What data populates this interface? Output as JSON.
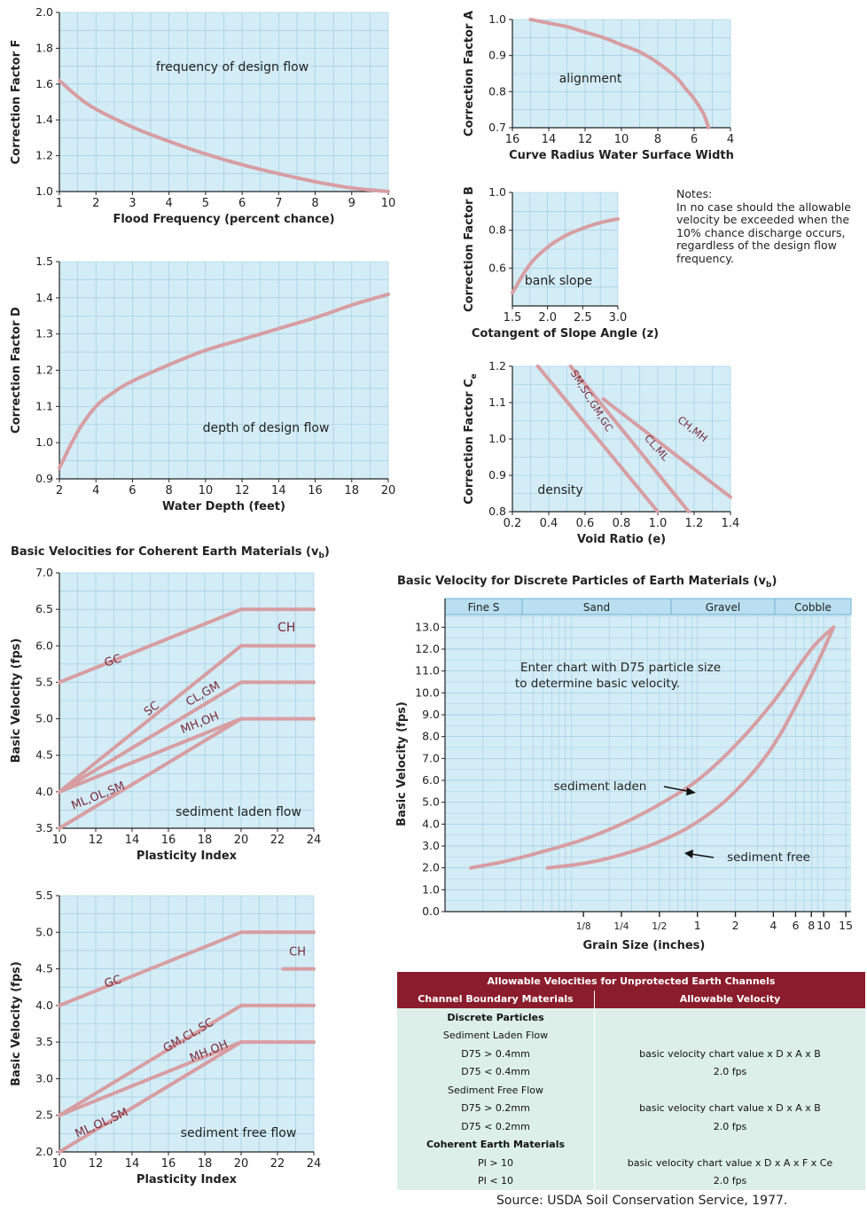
{
  "colors": {
    "plot_bg": "#d3ecf6",
    "grid": "#9ac9e0",
    "curve": "#d79ea2",
    "table_header": "#8b1c2c",
    "table_cell": "#dcefe9"
  },
  "chart_data": [
    {
      "id": "F",
      "type": "line",
      "ylabel": "Correction Factor F",
      "xlabel": "Flood Frequency (percent chance)",
      "annotation": "frequency of design flow",
      "xlim": [
        1,
        10
      ],
      "ylim": [
        1.0,
        2.0
      ],
      "xticks": [
        "1",
        "2",
        "3",
        "4",
        "5",
        "6",
        "7",
        "8",
        "9",
        "10"
      ],
      "yticks": [
        "1.0",
        "1.2",
        "1.4",
        "1.6",
        "1.8",
        "2.0"
      ],
      "series": [
        {
          "x": [
            1,
            1.5,
            2,
            3,
            4,
            5,
            6,
            7,
            8,
            9,
            10
          ],
          "y": [
            1.62,
            1.53,
            1.46,
            1.36,
            1.28,
            1.21,
            1.15,
            1.1,
            1.055,
            1.02,
            1.0
          ]
        }
      ]
    },
    {
      "id": "D",
      "type": "line",
      "ylabel": "Correction Factor D",
      "xlabel": "Water Depth (feet)",
      "annotation": "depth of design flow",
      "xlim": [
        2,
        20
      ],
      "ylim": [
        0.9,
        1.5
      ],
      "xticks": [
        "2",
        "4",
        "6",
        "8",
        "10",
        "12",
        "14",
        "16",
        "18",
        "20"
      ],
      "yticks": [
        "0.9",
        "1.0",
        "1.1",
        "1.2",
        "1.3",
        "1.4",
        "1.5"
      ],
      "series": [
        {
          "x": [
            2,
            3,
            4,
            5,
            6,
            8,
            10,
            12,
            14,
            16,
            18,
            20
          ],
          "y": [
            0.93,
            1.03,
            1.1,
            1.14,
            1.17,
            1.215,
            1.255,
            1.285,
            1.315,
            1.345,
            1.38,
            1.41
          ]
        }
      ]
    },
    {
      "id": "A",
      "type": "line",
      "ylabel": "Correction Factor A",
      "xlabel": "Curve Radius  Water Surface Width",
      "annotation": "alignment",
      "xlim": [
        16,
        4
      ],
      "ylim": [
        0.7,
        1.0
      ],
      "xticks": [
        "16",
        "14",
        "12",
        "10",
        "8",
        "6",
        "4"
      ],
      "yticks": [
        "0.7",
        "0.8",
        "0.9",
        "1.0"
      ],
      "series": [
        {
          "x": [
            15,
            14,
            13,
            12,
            11,
            10,
            9,
            8,
            7,
            6.5,
            6,
            5.5,
            5.2
          ],
          "y": [
            1.0,
            0.99,
            0.98,
            0.965,
            0.95,
            0.93,
            0.91,
            0.88,
            0.84,
            0.81,
            0.78,
            0.74,
            0.7
          ]
        }
      ]
    },
    {
      "id": "B",
      "type": "line",
      "ylabel": "Correction Factor B",
      "xlabel": "Cotangent of Slope Angle (z)",
      "annotation": "bank slope",
      "xlim": [
        1.5,
        3.0
      ],
      "ylim": [
        0.4,
        1.0
      ],
      "xticks": [
        "1.5",
        "2.0",
        "2.5",
        "3.0"
      ],
      "yticks": [
        "0.6",
        "0.8",
        "1.0"
      ],
      "series": [
        {
          "x": [
            1.5,
            1.75,
            2.0,
            2.25,
            2.5,
            2.75,
            3.0
          ],
          "y": [
            0.47,
            0.62,
            0.71,
            0.77,
            0.81,
            0.84,
            0.86
          ]
        }
      ]
    },
    {
      "id": "Ce",
      "type": "line",
      "ylabel": "Correction Factor C",
      "ylabel_sub": "e",
      "xlabel": "Void Ratio (e)",
      "annotation": "density",
      "xlim": [
        0.2,
        1.4
      ],
      "ylim": [
        0.8,
        1.2
      ],
      "xticks": [
        "0.2",
        "0.4",
        "0.6",
        "0.8",
        "1.0",
        "1.2",
        "1.4"
      ],
      "yticks": [
        "0.8",
        "0.9",
        "1.0",
        "1.1",
        "1.2"
      ],
      "series": [
        {
          "name": "SM,SC,GM,GC",
          "x": [
            0.34,
            1.0
          ],
          "y": [
            1.2,
            0.8
          ]
        },
        {
          "name": "CL,ML",
          "x": [
            0.52,
            1.17
          ],
          "y": [
            1.2,
            0.8
          ]
        },
        {
          "name": "CH,MH",
          "x": [
            0.7,
            1.4
          ],
          "y": [
            1.11,
            0.84
          ]
        }
      ]
    },
    {
      "id": "VbLaden",
      "type": "line",
      "ylabel": "Basic Velocity (fps)",
      "xlabel": "Plasticity Index",
      "annotation": "sediment laden flow",
      "xlim": [
        10,
        24
      ],
      "ylim": [
        3.5,
        7.0
      ],
      "xticks": [
        "10",
        "12",
        "14",
        "16",
        "18",
        "20",
        "22",
        "24"
      ],
      "yticks": [
        "3.5",
        "4.0",
        "4.5",
        "5.0",
        "5.5",
        "6.0",
        "6.5",
        "7.0"
      ],
      "series": [
        {
          "name": "GC",
          "x": [
            10,
            20,
            24
          ],
          "y": [
            5.5,
            6.5,
            6.5
          ]
        },
        {
          "name": "SC",
          "x": [
            10,
            20,
            24
          ],
          "y": [
            4.0,
            6.0,
            6.0
          ]
        },
        {
          "name": "CL,GM",
          "x": [
            10,
            20,
            24
          ],
          "y": [
            4.0,
            5.5,
            5.5
          ]
        },
        {
          "name": "MH,OH",
          "x": [
            10,
            20,
            24
          ],
          "y": [
            4.0,
            5.0,
            5.0
          ]
        },
        {
          "name": "ML,OL,SM",
          "x": [
            10,
            20
          ],
          "y": [
            3.5,
            5.0
          ]
        }
      ],
      "extra_label": "CH"
    },
    {
      "id": "VbFree",
      "type": "line",
      "ylabel": "Basic Velocity (fps)",
      "xlabel": "Plasticity Index",
      "annotation": "sediment free flow",
      "xlim": [
        10,
        24
      ],
      "ylim": [
        2.0,
        5.5
      ],
      "xticks": [
        "10",
        "12",
        "14",
        "16",
        "18",
        "20",
        "22",
        "24"
      ],
      "yticks": [
        "2.0",
        "2.5",
        "3.0",
        "3.5",
        "4.0",
        "4.5",
        "5.0",
        "5.5"
      ],
      "series": [
        {
          "name": "GC",
          "x": [
            10,
            20,
            24
          ],
          "y": [
            4.0,
            5.0,
            5.0
          ]
        },
        {
          "name": "GM,CL,SC",
          "x": [
            10,
            20,
            24
          ],
          "y": [
            2.5,
            4.0,
            4.0
          ]
        },
        {
          "name": "MH,OH",
          "x": [
            10,
            20,
            24
          ],
          "y": [
            2.5,
            3.5,
            3.5
          ]
        },
        {
          "name": "ML,OL,SM",
          "x": [
            10,
            20
          ],
          "y": [
            2.0,
            3.5
          ]
        },
        {
          "name": "CH",
          "x": [
            22.3,
            24
          ],
          "y": [
            4.5,
            4.5
          ]
        }
      ]
    },
    {
      "id": "Discrete",
      "type": "line",
      "ylabel": "Basic Velocity (fps)",
      "xlabel": "Grain Size (inches)",
      "annotation": "Enter chart with D75 particle size to determine basic velocity.",
      "xscale": "log",
      "ylim": [
        0.0,
        13.0
      ],
      "yticks": [
        "0.0",
        "1.0",
        "2.0",
        "3.0",
        "4.0",
        "5.0",
        "6.0",
        "7.0",
        "8.0",
        "9.0",
        "10.0",
        "11.0",
        "12.0",
        "13.0"
      ],
      "xticks": [
        "1/8",
        "1/4",
        "1/2",
        "1",
        "2",
        "4",
        "6",
        "8",
        "10",
        "15"
      ],
      "bands": [
        "Fine S",
        "Sand",
        "Gravel",
        "Cobble"
      ],
      "series": [
        {
          "name": "sediment laden",
          "x": [
            0.016,
            0.03,
            0.06,
            0.125,
            0.25,
            0.5,
            1,
            2,
            4,
            8,
            12
          ],
          "y": [
            2.0,
            2.3,
            2.75,
            3.3,
            4.0,
            4.9,
            6.0,
            7.6,
            9.6,
            12.0,
            13.0
          ]
        },
        {
          "name": "sediment free",
          "x": [
            0.065,
            0.125,
            0.25,
            0.5,
            1,
            2,
            4,
            8,
            12
          ],
          "y": [
            2.0,
            2.2,
            2.6,
            3.2,
            4.1,
            5.5,
            7.6,
            10.8,
            13.0
          ]
        }
      ]
    }
  ],
  "titles": {
    "coherent": "Basic Velocities for Coherent Earth Materials (v",
    "coherent_sub": "b",
    "coherent_end": ")",
    "discrete": "Basic Velocity for Discrete Particles of Earth Materials (v",
    "discrete_sub": "b",
    "discrete_end": ")"
  },
  "notes": {
    "heading": "Notes:",
    "body": "In no case should the allowable velocity be exceeded when the 10% chance discharge occurs, regardless of the design flow frequency."
  },
  "table": {
    "title": "Allowable Velocities for Unprotected Earth Channels",
    "col1": "Channel Boundary Materials",
    "col2": "Allowable Velocity",
    "rows": [
      {
        "a": "Discrete Particles",
        "b": "",
        "bold": true
      },
      {
        "a": "Sediment Laden Flow",
        "b": ""
      },
      {
        "a": "D75 > 0.4mm",
        "b": "basic velocity chart value x D x A x B"
      },
      {
        "a": "D75 < 0.4mm",
        "b": "2.0 fps"
      },
      {
        "a": "Sediment Free Flow",
        "b": ""
      },
      {
        "a": "D75 > 0.2mm",
        "b": "basic velocity chart value x D x A x B"
      },
      {
        "a": "D75 < 0.2mm",
        "b": "2.0 fps"
      },
      {
        "a": "Coherent Earth Materials",
        "b": "",
        "bold": true
      },
      {
        "a": "PI > 10",
        "b": "basic velocity chart value x D x A x F x Ce"
      },
      {
        "a": "PI < 10",
        "b": "2.0 fps"
      }
    ]
  },
  "source": "Source: USDA Soil Conservation Service, 1977."
}
